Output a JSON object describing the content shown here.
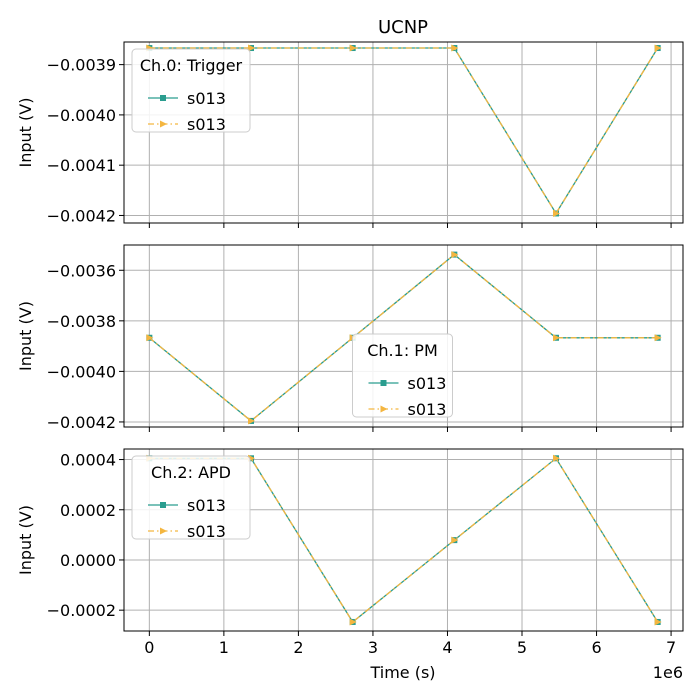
{
  "figure": {
    "title": "UCNP",
    "xlabel": "Time (s)",
    "x_offset_text": "1e6"
  },
  "chart_data": [
    {
      "type": "line",
      "title": "UCNP",
      "legend_title": "Ch.0: Trigger",
      "legend_position": "upper-left",
      "ylabel": "Input (V)",
      "xlabel": "",
      "grid": true,
      "xlim": [
        -0.34,
        7.16
      ],
      "ylim": [
        -0.004215,
        -0.003855
      ],
      "y_ticks": [
        -0.0039,
        -0.004,
        -0.0041,
        -0.0042
      ],
      "y_tick_labels": [
        "−0.0039",
        "−0.0040",
        "−0.0041",
        "−0.0042"
      ],
      "x_ticks": [
        0,
        1,
        2,
        3,
        4,
        5,
        6,
        7
      ],
      "x_tick_labels": [],
      "x": [
        0,
        1.364,
        2.728,
        4.092,
        5.456,
        6.82
      ],
      "series": [
        {
          "name": "s013",
          "color": "#2a9d8f",
          "marker": "square",
          "line": "solid",
          "values": [
            -0.003867,
            -0.003867,
            -0.003867,
            -0.003867,
            -0.004196,
            -0.003867
          ]
        },
        {
          "name": "s013",
          "color": "#f4b640",
          "marker": "triangle-right",
          "line": "dashdot",
          "values": [
            -0.003867,
            -0.003867,
            -0.003867,
            -0.003867,
            -0.004196,
            -0.003867
          ]
        }
      ]
    },
    {
      "type": "line",
      "legend_title": "Ch.1: PM",
      "legend_position": "lower-center",
      "ylabel": "Input (V)",
      "xlabel": "",
      "grid": true,
      "xlim": [
        -0.34,
        7.16
      ],
      "ylim": [
        -0.00422,
        -0.0035
      ],
      "y_ticks": [
        -0.0036,
        -0.0038,
        -0.004,
        -0.0042
      ],
      "y_tick_labels": [
        "−0.0036",
        "−0.0038",
        "−0.0040",
        "−0.0042"
      ],
      "x_ticks": [
        0,
        1,
        2,
        3,
        4,
        5,
        6,
        7
      ],
      "x_tick_labels": [],
      "x": [
        0,
        1.364,
        2.728,
        4.092,
        5.456,
        6.82
      ],
      "series": [
        {
          "name": "s013",
          "color": "#2a9d8f",
          "marker": "square",
          "line": "solid",
          "values": [
            -0.003867,
            -0.004196,
            -0.003867,
            -0.003538,
            -0.003867,
            -0.003867
          ]
        },
        {
          "name": "s013",
          "color": "#f4b640",
          "marker": "triangle-right",
          "line": "dashdot",
          "values": [
            -0.003867,
            -0.004196,
            -0.003867,
            -0.003538,
            -0.003867,
            -0.003867
          ]
        }
      ]
    },
    {
      "type": "line",
      "legend_title": "Ch.2: APD",
      "legend_position": "upper-left",
      "ylabel": "Input (V)",
      "xlabel": "Time (s)",
      "grid": true,
      "xlim": [
        -0.34,
        7.16
      ],
      "ylim": [
        -0.000283,
        0.000442
      ],
      "y_ticks": [
        0.0004,
        0.0002,
        0.0,
        -0.0002
      ],
      "y_tick_labels": [
        "0.0004",
        "0.0002",
        "0.0000",
        "−0.0002"
      ],
      "x_ticks": [
        0,
        1,
        2,
        3,
        4,
        5,
        6,
        7
      ],
      "x_tick_labels": [
        "0",
        "1",
        "2",
        "3",
        "4",
        "5",
        "6",
        "7"
      ],
      "x": [
        0,
        1.364,
        2.728,
        4.092,
        5.456,
        6.82
      ],
      "series": [
        {
          "name": "s013",
          "color": "#2a9d8f",
          "marker": "square",
          "line": "solid",
          "values": [
            0.000405,
            0.000405,
            -0.000247,
            7.9e-05,
            0.000405,
            -0.000247
          ]
        },
        {
          "name": "s013",
          "color": "#f4b640",
          "marker": "triangle-right",
          "line": "dashdot",
          "values": [
            0.000405,
            0.000405,
            -0.000247,
            7.9e-05,
            0.000405,
            -0.000247
          ]
        }
      ]
    }
  ]
}
